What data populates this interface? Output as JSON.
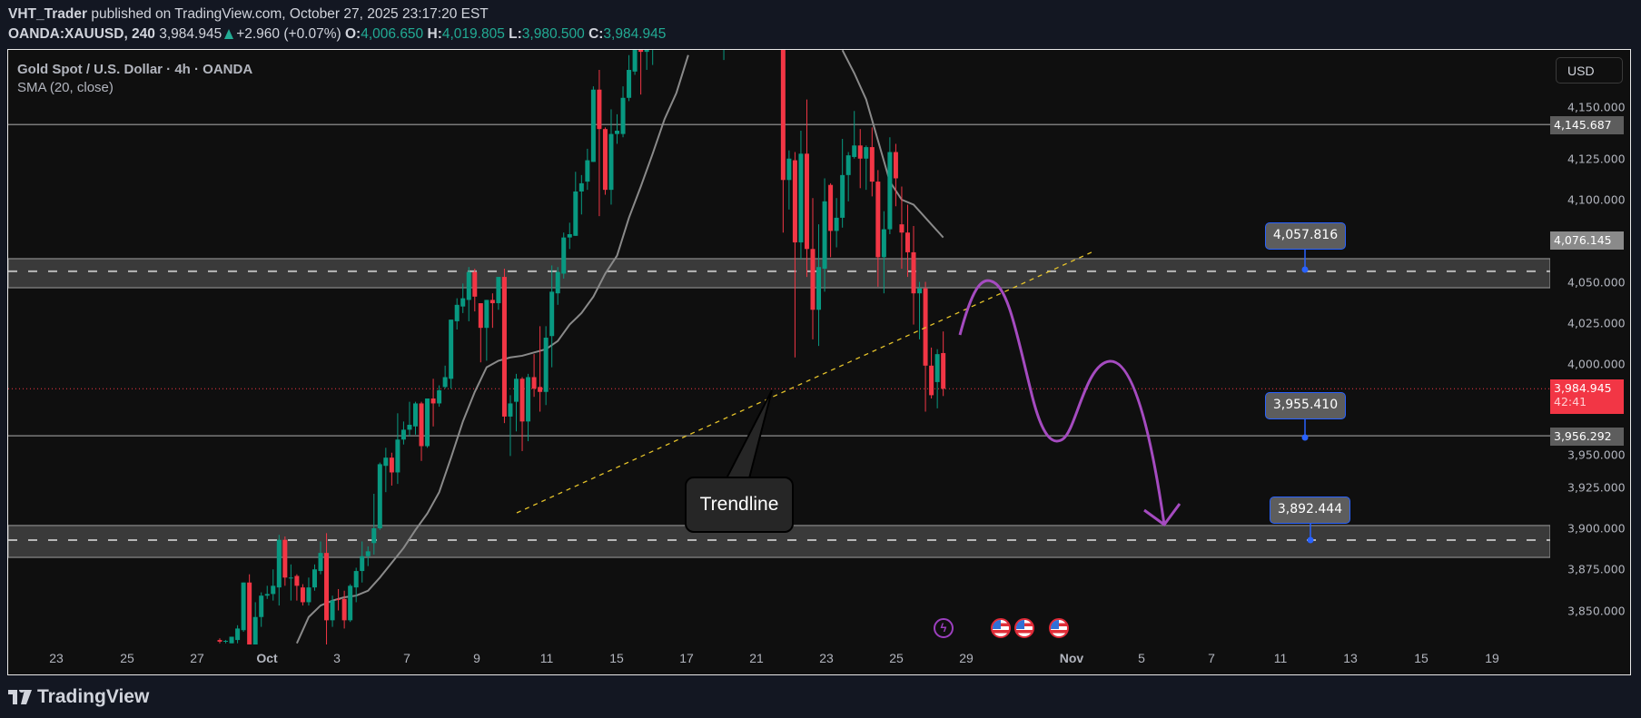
{
  "header": {
    "author": "VHT_Trader",
    "published": "published on TradingView.com, October 27, 2025 23:17:20 EST",
    "symbol": "OANDA:XAUUSD, 240",
    "last": "3,984.945",
    "change": "+2.960 (+0.07%)",
    "o_label": "O:",
    "o": "4,006.650",
    "h_label": "H:",
    "h": "4,019.805",
    "l_label": "L:",
    "l": "3,980.500",
    "c_label": "C:",
    "c": "3,984.945"
  },
  "legend": {
    "title": "Gold Spot / U.S. Dollar · 4h · OANDA",
    "indicator": "SMA (20, close)"
  },
  "currency_button": "USD",
  "colors": {
    "up": "#089981",
    "down": "#f23645",
    "sma": "#8a8a8a",
    "trendline": "#e5c32a",
    "projection": "#a54bc0",
    "zone": "#3a3a3a",
    "note_border": "#2962ff"
  },
  "price_axis": {
    "ticks": [
      "4,150.000",
      "4,125.000",
      "4,100.000",
      "4,050.000",
      "4,025.000",
      "4,000.000",
      "3,950.000",
      "3,925.000",
      "3,900.000",
      "3,875.000",
      "3,850.000"
    ],
    "labels": {
      "line_top": "4,145.687",
      "sma_value": "4,076.145",
      "current": "3,984.945",
      "countdown": "42:41",
      "line_mid": "3,956.292"
    }
  },
  "time_axis": [
    "23",
    "25",
    "27",
    "Oct",
    "3",
    "7",
    "9",
    "11",
    "15",
    "17",
    "21",
    "23",
    "25",
    "29",
    "Nov",
    "5",
    "7",
    "11",
    "13",
    "15",
    "19"
  ],
  "notes": [
    "4,057.816",
    "3,955.410",
    "3,892.444"
  ],
  "callout": "Trendline",
  "events": [
    "lightning-icon",
    "us-flag-icon",
    "us-flag-icon",
    "us-flag-icon"
  ],
  "footer": {
    "brand": "TradingView"
  },
  "chart_data": {
    "type": "candlestick",
    "symbol": "XAUUSD",
    "timeframe": "4h",
    "ylim": [
      3830,
      4191
    ],
    "tick_values": [
      4150,
      4125,
      4100,
      4050,
      4025,
      4000,
      3950,
      3925,
      3900,
      3875,
      3850
    ],
    "candles_ohlc": [
      [
        3832,
        3833,
        3830,
        3831
      ],
      [
        3831,
        3832,
        3830,
        3831.5
      ],
      [
        3830,
        3834,
        3830,
        3834
      ],
      [
        3832,
        3841,
        3830,
        3839
      ],
      [
        3838,
        3867,
        3837,
        3867
      ],
      [
        3867,
        3872,
        3822,
        3825
      ],
      [
        3825,
        3855,
        3822,
        3846
      ],
      [
        3846,
        3861,
        3840,
        3859
      ],
      [
        3859,
        3865,
        3857,
        3860
      ],
      [
        3860,
        3875,
        3856,
        3865
      ],
      [
        3864,
        3896,
        3853,
        3893
      ],
      [
        3893,
        3895,
        3865,
        3870
      ],
      [
        3870,
        3878,
        3856,
        3870
      ],
      [
        3871,
        3872,
        3856,
        3865
      ],
      [
        3864,
        3866,
        3853,
        3855
      ],
      [
        3855,
        3870,
        3853,
        3864
      ],
      [
        3864,
        3878,
        3862,
        3875
      ],
      [
        3874,
        3892,
        3872,
        3885
      ],
      [
        3885,
        3897,
        3825,
        3844
      ],
      [
        3844,
        3859,
        3840,
        3856
      ],
      [
        3857,
        3863,
        3850,
        3856.5
      ],
      [
        3857,
        3862,
        3839,
        3844
      ],
      [
        3844,
        3866,
        3843,
        3865
      ],
      [
        3864,
        3876,
        3855,
        3874
      ],
      [
        3874,
        3892,
        3867,
        3883
      ],
      [
        3883,
        3889,
        3877,
        3886
      ],
      [
        3891,
        3921,
        3884,
        3900
      ],
      [
        3900,
        3940,
        3899,
        3939
      ],
      [
        3938,
        3949,
        3922,
        3943
      ],
      [
        3943,
        3946,
        3926,
        3934
      ],
      [
        3934,
        3970,
        3927,
        3954
      ],
      [
        3954,
        3965,
        3951,
        3960
      ],
      [
        3960,
        3977,
        3956,
        3963
      ],
      [
        3962,
        3977,
        3957,
        3976
      ],
      [
        3976,
        3977,
        3941,
        3950
      ],
      [
        3950,
        3979,
        3949,
        3979
      ],
      [
        3979,
        3991,
        3962,
        3976
      ],
      [
        3976,
        3987,
        3974,
        3984
      ],
      [
        3986,
        3999,
        3985,
        3992
      ],
      [
        3991,
        4027,
        3985,
        4027
      ],
      [
        4026,
        4040,
        4021,
        4036
      ],
      [
        4035,
        4049,
        4031,
        4040
      ],
      [
        4039,
        4059,
        4026,
        4056
      ],
      [
        4056,
        4058,
        4032,
        4041
      ],
      [
        4037,
        4037,
        4001,
        4022
      ],
      [
        4022,
        4039,
        4002,
        4039
      ],
      [
        4039,
        4043,
        4022,
        4037
      ],
      [
        4037,
        4053,
        4033,
        4053
      ],
      [
        4053,
        4058,
        3964,
        3968
      ],
      [
        3968,
        3981,
        3944,
        3976
      ],
      [
        3977,
        3994,
        3959,
        3991
      ],
      [
        3991,
        3992,
        3947,
        3965
      ],
      [
        3965,
        3994,
        3953,
        3992
      ],
      [
        3992,
        4006,
        3980,
        3985
      ],
      [
        3986,
        4023,
        3971,
        3983
      ],
      [
        3983,
        4023,
        3975,
        4016
      ],
      [
        4017,
        4060,
        3998,
        4044
      ],
      [
        4043,
        4059,
        4036,
        4056
      ],
      [
        4055,
        4080,
        4052,
        4077
      ],
      [
        4077,
        4086,
        4070,
        4079
      ],
      [
        4078,
        4117,
        4078,
        4105
      ],
      [
        4105,
        4115,
        4091,
        4110
      ],
      [
        4111,
        4131,
        4106,
        4124
      ],
      [
        4123,
        4169,
        4123,
        4167
      ],
      [
        4167,
        4179,
        4090,
        4143
      ],
      [
        4143,
        4144,
        4103,
        4106
      ],
      [
        4106,
        4155,
        4097,
        4140
      ],
      [
        4140,
        4152,
        4134,
        4142
      ],
      [
        4140,
        4169,
        4138,
        4162
      ],
      [
        4162,
        4188,
        4160,
        4179
      ],
      [
        4178,
        4200,
        4176,
        4195
      ],
      [
        4200,
        4215,
        4164,
        4190
      ],
      [
        4190,
        4220,
        4179,
        4215
      ],
      [
        4215,
        4230,
        4182,
        4225
      ],
      null,
      null,
      null,
      null,
      null,
      null,
      null,
      null,
      null,
      null,
      null,
      [
        null,
        null,
        4185,
        null
      ],
      null,
      null,
      null,
      null,
      null,
      null,
      null,
      null,
      null,
      [
        null,
        null,
        4080,
        4112
      ],
      [
        4112,
        4130,
        4094,
        4125
      ],
      [
        4124,
        4129,
        4004,
        4074
      ],
      [
        4074,
        4142,
        4064,
        4128
      ],
      [
        4128,
        4161,
        4053,
        4070
      ],
      [
        4070,
        4101,
        4015,
        4033
      ],
      [
        4033,
        4085,
        4011,
        4059
      ],
      [
        4058,
        4113,
        4044,
        4099
      ],
      [
        4109,
        4110,
        4065,
        4081
      ],
      [
        4081,
        4101,
        4071,
        4089
      ],
      [
        4089,
        4137,
        4083,
        4115
      ],
      [
        4115,
        4129,
        4099,
        4127
      ],
      [
        4126,
        4154,
        4125,
        4133
      ],
      [
        4133,
        4143,
        4107,
        4125
      ],
      [
        4125,
        4133,
        4106,
        4132
      ],
      [
        4132,
        4144,
        4102,
        4111
      ],
      [
        4111,
        4118,
        4047,
        4065
      ],
      [
        4065,
        4093,
        4043,
        4082
      ],
      [
        4082,
        4138,
        4079,
        4129
      ],
      [
        4129,
        4134,
        4096,
        4113
      ],
      [
        4085,
        4108,
        4058,
        4080
      ],
      [
        4080,
        4097,
        4053,
        4068
      ],
      [
        4068,
        4084,
        4024,
        4043
      ],
      [
        4043,
        4050,
        4015,
        4046
      ],
      [
        4046,
        4050,
        3971,
        3999
      ],
      [
        3999,
        4010,
        3979,
        3981
      ],
      [
        3989,
        4009,
        3973,
        4006
      ],
      [
        4006.65,
        4019.805,
        3980.5,
        3984.945
      ]
    ],
    "sma20": [
      null,
      null,
      null,
      null,
      null,
      null,
      null,
      null,
      null,
      null,
      null,
      null,
      null,
      3830,
      null,
      3846,
      null,
      3853,
      null,
      3856,
      null,
      3858,
      null,
      3859,
      null,
      3862,
      null,
      3870,
      null,
      3879,
      null,
      3888,
      null,
      3899,
      null,
      3909,
      null,
      3922,
      null,
      3943,
      null,
      3965,
      null,
      3983,
      null,
      3998,
      null,
      4002,
      null,
      4004,
      null,
      4005,
      null,
      4007,
      null,
      4009,
      null,
      4014,
      null,
      4024,
      null,
      4031,
      null,
      4041,
      null,
      4055,
      null,
      4066,
      null,
      4089,
      null,
      4108,
      null,
      4128,
      null,
      4149,
      null,
      4165,
      null,
      4188,
      null,
      null,
      null,
      null,
      null,
      null,
      null,
      null,
      null,
      null,
      null,
      null,
      null,
      null,
      null,
      null,
      null,
      null,
      null,
      null,
      null,
      null,
      null,
      null,
      null,
      4191,
      null,
      4177,
      null,
      4161,
      null,
      4136,
      null,
      4111,
      null,
      4100,
      null,
      4097,
      null,
      4089,
      null,
      4081,
      4077
    ],
    "horizontal_lines": [
      4145.687,
      3956.292
    ],
    "current_price": 3984.945,
    "zones": [
      {
        "top": 4064.1,
        "bottom": 4046.4,
        "mid": 4056.4
      },
      {
        "top": 3901.7,
        "bottom": 3882.3,
        "mid": 3892.8
      }
    ],
    "trendline": {
      "from": 3909.4,
      "to": 4069.0
    },
    "price_notes": [
      4057.816,
      3955.41,
      3892.444
    ]
  }
}
